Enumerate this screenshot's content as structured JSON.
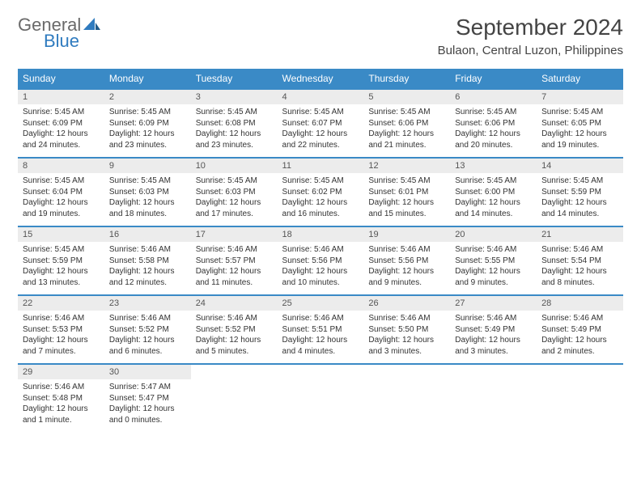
{
  "logo": {
    "text_general": "General",
    "text_blue": "Blue",
    "accent_color": "#2f7bbf"
  },
  "header": {
    "title": "September 2024",
    "location": "Bulaon, Central Luzon, Philippines"
  },
  "colors": {
    "header_bg": "#3a8ac6",
    "header_text": "#ffffff",
    "daynum_bg": "#ececec",
    "border": "#3a8ac6",
    "text": "#333333",
    "title_text": "#444444"
  },
  "dayNames": [
    "Sunday",
    "Monday",
    "Tuesday",
    "Wednesday",
    "Thursday",
    "Friday",
    "Saturday"
  ],
  "weeks": [
    [
      {
        "n": "1",
        "sr": "Sunrise: 5:45 AM",
        "ss": "Sunset: 6:09 PM",
        "dl": "Daylight: 12 hours and 24 minutes."
      },
      {
        "n": "2",
        "sr": "Sunrise: 5:45 AM",
        "ss": "Sunset: 6:09 PM",
        "dl": "Daylight: 12 hours and 23 minutes."
      },
      {
        "n": "3",
        "sr": "Sunrise: 5:45 AM",
        "ss": "Sunset: 6:08 PM",
        "dl": "Daylight: 12 hours and 23 minutes."
      },
      {
        "n": "4",
        "sr": "Sunrise: 5:45 AM",
        "ss": "Sunset: 6:07 PM",
        "dl": "Daylight: 12 hours and 22 minutes."
      },
      {
        "n": "5",
        "sr": "Sunrise: 5:45 AM",
        "ss": "Sunset: 6:06 PM",
        "dl": "Daylight: 12 hours and 21 minutes."
      },
      {
        "n": "6",
        "sr": "Sunrise: 5:45 AM",
        "ss": "Sunset: 6:06 PM",
        "dl": "Daylight: 12 hours and 20 minutes."
      },
      {
        "n": "7",
        "sr": "Sunrise: 5:45 AM",
        "ss": "Sunset: 6:05 PM",
        "dl": "Daylight: 12 hours and 19 minutes."
      }
    ],
    [
      {
        "n": "8",
        "sr": "Sunrise: 5:45 AM",
        "ss": "Sunset: 6:04 PM",
        "dl": "Daylight: 12 hours and 19 minutes."
      },
      {
        "n": "9",
        "sr": "Sunrise: 5:45 AM",
        "ss": "Sunset: 6:03 PM",
        "dl": "Daylight: 12 hours and 18 minutes."
      },
      {
        "n": "10",
        "sr": "Sunrise: 5:45 AM",
        "ss": "Sunset: 6:03 PM",
        "dl": "Daylight: 12 hours and 17 minutes."
      },
      {
        "n": "11",
        "sr": "Sunrise: 5:45 AM",
        "ss": "Sunset: 6:02 PM",
        "dl": "Daylight: 12 hours and 16 minutes."
      },
      {
        "n": "12",
        "sr": "Sunrise: 5:45 AM",
        "ss": "Sunset: 6:01 PM",
        "dl": "Daylight: 12 hours and 15 minutes."
      },
      {
        "n": "13",
        "sr": "Sunrise: 5:45 AM",
        "ss": "Sunset: 6:00 PM",
        "dl": "Daylight: 12 hours and 14 minutes."
      },
      {
        "n": "14",
        "sr": "Sunrise: 5:45 AM",
        "ss": "Sunset: 5:59 PM",
        "dl": "Daylight: 12 hours and 14 minutes."
      }
    ],
    [
      {
        "n": "15",
        "sr": "Sunrise: 5:45 AM",
        "ss": "Sunset: 5:59 PM",
        "dl": "Daylight: 12 hours and 13 minutes."
      },
      {
        "n": "16",
        "sr": "Sunrise: 5:46 AM",
        "ss": "Sunset: 5:58 PM",
        "dl": "Daylight: 12 hours and 12 minutes."
      },
      {
        "n": "17",
        "sr": "Sunrise: 5:46 AM",
        "ss": "Sunset: 5:57 PM",
        "dl": "Daylight: 12 hours and 11 minutes."
      },
      {
        "n": "18",
        "sr": "Sunrise: 5:46 AM",
        "ss": "Sunset: 5:56 PM",
        "dl": "Daylight: 12 hours and 10 minutes."
      },
      {
        "n": "19",
        "sr": "Sunrise: 5:46 AM",
        "ss": "Sunset: 5:56 PM",
        "dl": "Daylight: 12 hours and 9 minutes."
      },
      {
        "n": "20",
        "sr": "Sunrise: 5:46 AM",
        "ss": "Sunset: 5:55 PM",
        "dl": "Daylight: 12 hours and 9 minutes."
      },
      {
        "n": "21",
        "sr": "Sunrise: 5:46 AM",
        "ss": "Sunset: 5:54 PM",
        "dl": "Daylight: 12 hours and 8 minutes."
      }
    ],
    [
      {
        "n": "22",
        "sr": "Sunrise: 5:46 AM",
        "ss": "Sunset: 5:53 PM",
        "dl": "Daylight: 12 hours and 7 minutes."
      },
      {
        "n": "23",
        "sr": "Sunrise: 5:46 AM",
        "ss": "Sunset: 5:52 PM",
        "dl": "Daylight: 12 hours and 6 minutes."
      },
      {
        "n": "24",
        "sr": "Sunrise: 5:46 AM",
        "ss": "Sunset: 5:52 PM",
        "dl": "Daylight: 12 hours and 5 minutes."
      },
      {
        "n": "25",
        "sr": "Sunrise: 5:46 AM",
        "ss": "Sunset: 5:51 PM",
        "dl": "Daylight: 12 hours and 4 minutes."
      },
      {
        "n": "26",
        "sr": "Sunrise: 5:46 AM",
        "ss": "Sunset: 5:50 PM",
        "dl": "Daylight: 12 hours and 3 minutes."
      },
      {
        "n": "27",
        "sr": "Sunrise: 5:46 AM",
        "ss": "Sunset: 5:49 PM",
        "dl": "Daylight: 12 hours and 3 minutes."
      },
      {
        "n": "28",
        "sr": "Sunrise: 5:46 AM",
        "ss": "Sunset: 5:49 PM",
        "dl": "Daylight: 12 hours and 2 minutes."
      }
    ],
    [
      {
        "n": "29",
        "sr": "Sunrise: 5:46 AM",
        "ss": "Sunset: 5:48 PM",
        "dl": "Daylight: 12 hours and 1 minute."
      },
      {
        "n": "30",
        "sr": "Sunrise: 5:47 AM",
        "ss": "Sunset: 5:47 PM",
        "dl": "Daylight: 12 hours and 0 minutes."
      },
      null,
      null,
      null,
      null,
      null
    ]
  ]
}
